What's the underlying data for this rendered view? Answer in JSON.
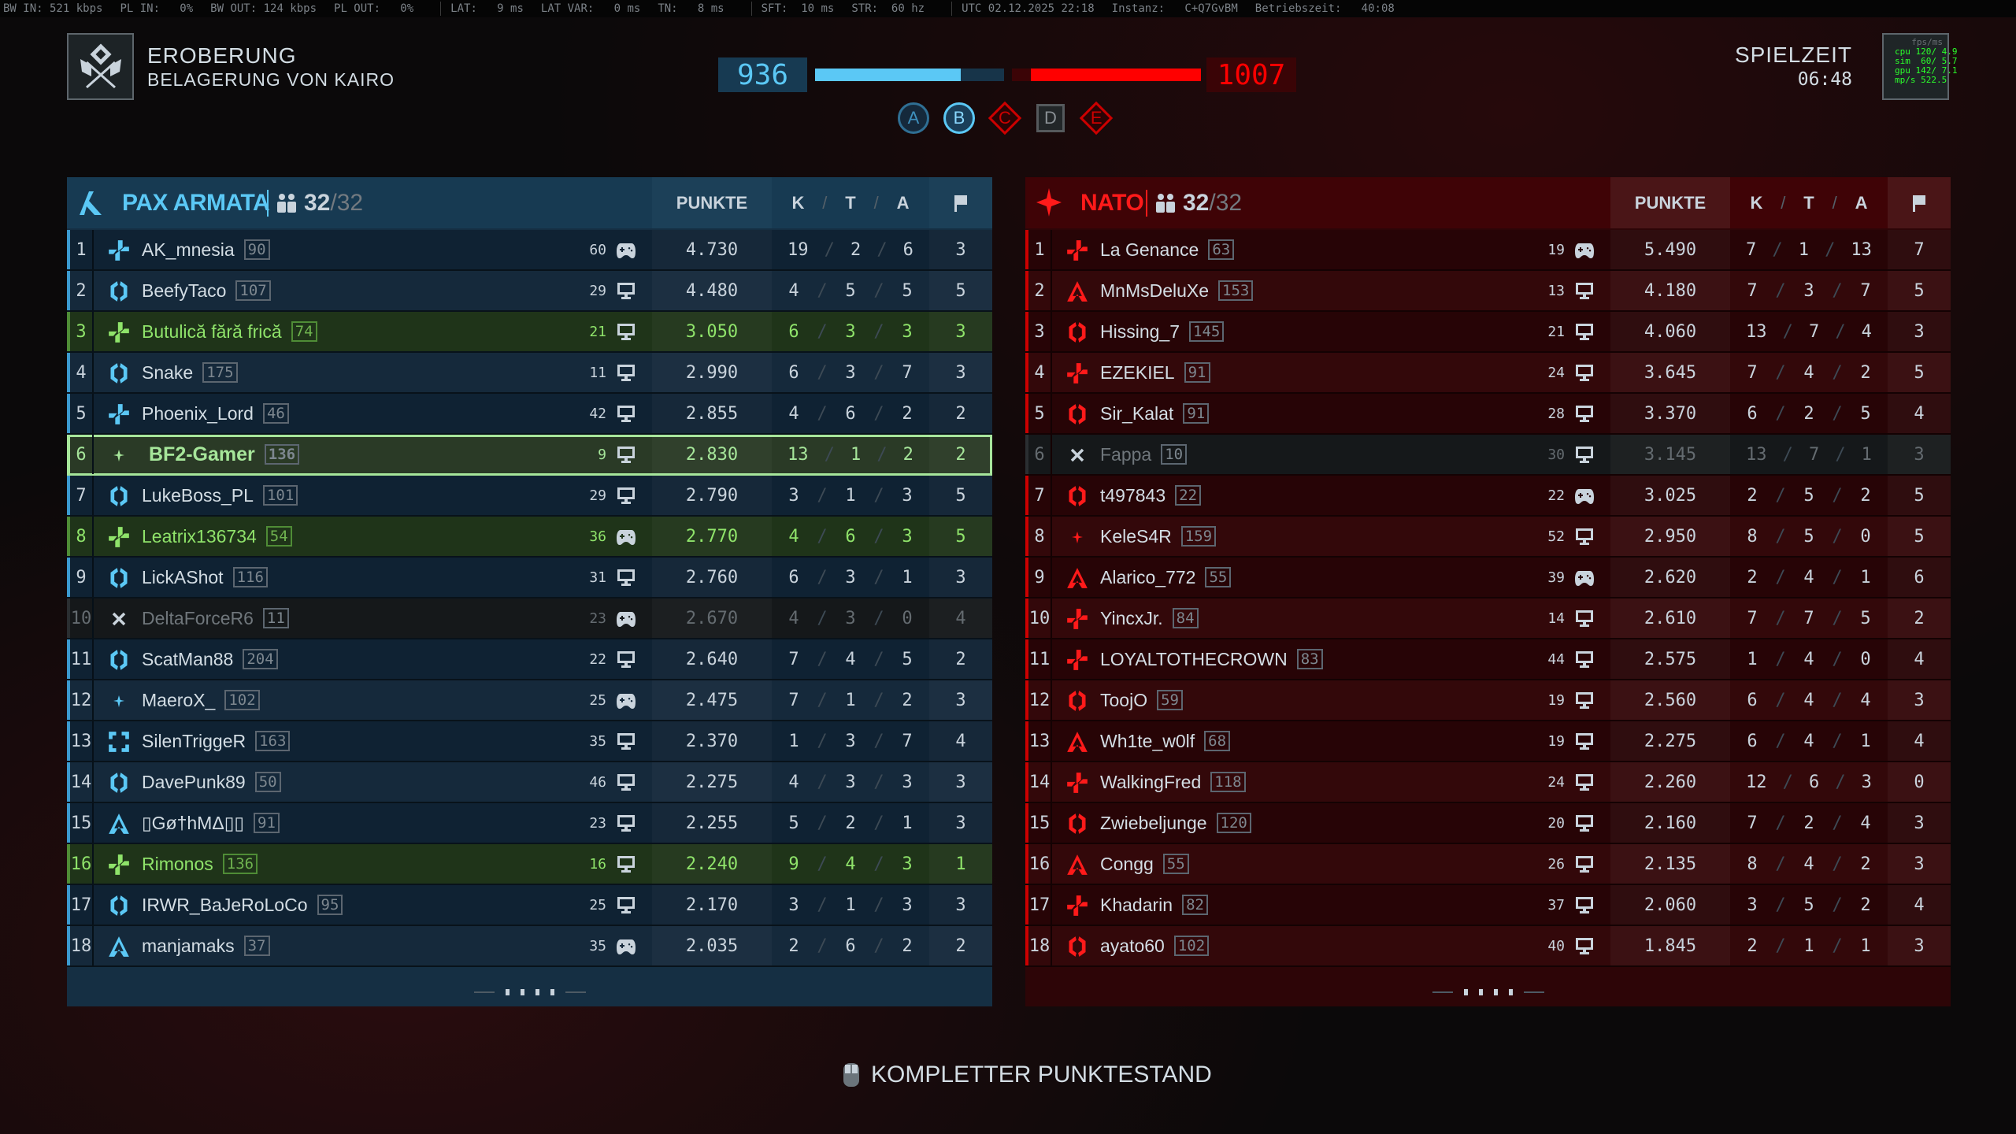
{
  "status_bar": {
    "segments": [
      [
        "BW IN: 521 kbps",
        "PL IN:   0%",
        "BW OUT: 124 kbps",
        "PL OUT:   0%"
      ],
      [
        "LAT:   9 ms",
        "LAT VAR:   0 ms",
        "TN:   8 ms"
      ],
      [
        "SFT:  10 ms",
        "STR:  60 hz"
      ],
      [
        "UTC 02.12.2025 22:18",
        "Instanz:   C+Q7GvBM",
        "Betriebszeit:   40:08"
      ]
    ]
  },
  "mode": {
    "title": "EROBERUNG",
    "map": "BELAGERUNG VON KAIRO",
    "icon": "conquest-emblem-icon"
  },
  "scoreboard": {
    "blue_score": "936",
    "red_score": "1007",
    "blue_bar_fraction": 0.77,
    "red_bar_fraction": 0.9,
    "flags": [
      {
        "label": "A",
        "owner": "blue",
        "shape": "circle",
        "active": false
      },
      {
        "label": "B",
        "owner": "blue",
        "shape": "circle",
        "active": true
      },
      {
        "label": "C",
        "owner": "red",
        "shape": "diamond",
        "active": false
      },
      {
        "label": "D",
        "owner": "neutral",
        "shape": "square",
        "active": false
      },
      {
        "label": "E",
        "owner": "red",
        "shape": "diamond",
        "active": false
      }
    ]
  },
  "clock": {
    "label": "SPIELZEIT",
    "value": "06:48"
  },
  "perf": {
    "header": "fps/ms",
    "lines": [
      "cpu 120/ 4.9",
      "sim  60/ 5.7",
      "gpu 142/ 7.1",
      "mp/s 522.5"
    ]
  },
  "colors": {
    "blue": "#5bc8f5",
    "red": "#ff1a1a",
    "squad_green": "#8fe36a",
    "self_green": "#a6e69a"
  },
  "columns": {
    "score": "PUNKTE",
    "k": "K",
    "t": "T",
    "a": "A",
    "flags_icon": "flag-icon"
  },
  "teams": [
    {
      "name": "PAX ARMATA",
      "count": "32",
      "max": "/32",
      "side": "left",
      "players": [
        {
          "rank": "1",
          "cls": "assault",
          "name": "AK_mnesia",
          "level": "90",
          "ping": "60",
          "device": "gamepad",
          "score": "4.730",
          "k": "19",
          "t": "2",
          "a": "6",
          "flags": "3",
          "state": ""
        },
        {
          "rank": "2",
          "cls": "support",
          "name": "BeefyTaco",
          "level": "107",
          "ping": "29",
          "device": "pc",
          "score": "4.480",
          "k": "4",
          "t": "5",
          "a": "5",
          "flags": "5",
          "state": ""
        },
        {
          "rank": "3",
          "cls": "assault",
          "name": "Butulică fără frică",
          "level": "74",
          "ping": "21",
          "device": "pc",
          "score": "3.050",
          "k": "6",
          "t": "3",
          "a": "3",
          "flags": "3",
          "state": "squad"
        },
        {
          "rank": "4",
          "cls": "support",
          "name": "Snake",
          "level": "175",
          "ping": "11",
          "device": "pc",
          "score": "2.990",
          "k": "6",
          "t": "3",
          "a": "7",
          "flags": "3",
          "state": ""
        },
        {
          "rank": "5",
          "cls": "assault",
          "name": "Phoenix_Lord",
          "level": "46",
          "ping": "42",
          "device": "pc",
          "score": "2.855",
          "k": "4",
          "t": "6",
          "a": "2",
          "flags": "2",
          "state": ""
        },
        {
          "rank": "6",
          "cls": "pulse",
          "name": "BF2-Gamer",
          "level": "136",
          "ping": "9",
          "device": "pc",
          "score": "2.830",
          "k": "13",
          "t": "1",
          "a": "2",
          "flags": "2",
          "state": "self"
        },
        {
          "rank": "7",
          "cls": "support",
          "name": "LukeBoss_PL",
          "level": "101",
          "ping": "29",
          "device": "pc",
          "score": "2.790",
          "k": "3",
          "t": "1",
          "a": "3",
          "flags": "5",
          "state": ""
        },
        {
          "rank": "8",
          "cls": "assault",
          "name": "Leatrix136734",
          "level": "54",
          "ping": "36",
          "device": "gamepad",
          "score": "2.770",
          "k": "4",
          "t": "6",
          "a": "3",
          "flags": "5",
          "state": "squad"
        },
        {
          "rank": "9",
          "cls": "support",
          "name": "LickAShot",
          "level": "116",
          "ping": "31",
          "device": "pc",
          "score": "2.760",
          "k": "6",
          "t": "3",
          "a": "1",
          "flags": "3",
          "state": ""
        },
        {
          "rank": "10",
          "cls": "dead",
          "name": "DeltaForceR6",
          "level": "11",
          "ping": "23",
          "device": "gamepad",
          "score": "2.670",
          "k": "4",
          "t": "3",
          "a": "0",
          "flags": "4",
          "state": "dead"
        },
        {
          "rank": "11",
          "cls": "support",
          "name": "ScatMan88",
          "level": "204",
          "ping": "22",
          "device": "pc",
          "score": "2.640",
          "k": "7",
          "t": "4",
          "a": "5",
          "flags": "2",
          "state": ""
        },
        {
          "rank": "12",
          "cls": "pulse",
          "name": "MaeroX_",
          "level": "102",
          "ping": "25",
          "device": "gamepad",
          "score": "2.475",
          "k": "7",
          "t": "1",
          "a": "2",
          "flags": "3",
          "state": ""
        },
        {
          "rank": "13",
          "cls": "engineer",
          "name": "SilenTriggeR",
          "level": "163",
          "ping": "35",
          "device": "pc",
          "score": "2.370",
          "k": "1",
          "t": "3",
          "a": "7",
          "flags": "4",
          "state": ""
        },
        {
          "rank": "14",
          "cls": "support",
          "name": "DavePunk89",
          "level": "50",
          "ping": "46",
          "device": "pc",
          "score": "2.275",
          "k": "4",
          "t": "3",
          "a": "3",
          "flags": "3",
          "state": ""
        },
        {
          "rank": "15",
          "cls": "recon",
          "name": "▯Gø†hMΔ▯▯",
          "level": "91",
          "ping": "23",
          "device": "pc",
          "score": "2.255",
          "k": "5",
          "t": "2",
          "a": "1",
          "flags": "3",
          "state": ""
        },
        {
          "rank": "16",
          "cls": "assault",
          "name": "Rimonos",
          "level": "136",
          "ping": "16",
          "device": "pc",
          "score": "2.240",
          "k": "9",
          "t": "4",
          "a": "3",
          "flags": "1",
          "state": "squad"
        },
        {
          "rank": "17",
          "cls": "support",
          "name": "IRWR_BaJeRoLoCo",
          "level": "95",
          "ping": "25",
          "device": "pc",
          "score": "2.170",
          "k": "3",
          "t": "1",
          "a": "3",
          "flags": "3",
          "state": ""
        },
        {
          "rank": "18",
          "cls": "recon",
          "name": "manjamaks",
          "level": "37",
          "ping": "35",
          "device": "gamepad",
          "score": "2.035",
          "k": "2",
          "t": "6",
          "a": "2",
          "flags": "2",
          "state": ""
        }
      ]
    },
    {
      "name": "NATO",
      "count": "32",
      "max": "/32",
      "side": "right",
      "players": [
        {
          "rank": "1",
          "cls": "assault",
          "name": "La Genance",
          "level": "63",
          "ping": "19",
          "device": "gamepad",
          "score": "5.490",
          "k": "7",
          "t": "1",
          "a": "13",
          "flags": "7",
          "state": ""
        },
        {
          "rank": "2",
          "cls": "recon",
          "name": "MnMsDeluXe",
          "level": "153",
          "ping": "13",
          "device": "pc",
          "score": "4.180",
          "k": "7",
          "t": "3",
          "a": "7",
          "flags": "5",
          "state": ""
        },
        {
          "rank": "3",
          "cls": "support",
          "name": "Hissing_7",
          "level": "145",
          "ping": "21",
          "device": "pc",
          "score": "4.060",
          "k": "13",
          "t": "7",
          "a": "4",
          "flags": "3",
          "state": ""
        },
        {
          "rank": "4",
          "cls": "assault",
          "name": "EZEKIEL",
          "level": "91",
          "ping": "24",
          "device": "pc",
          "score": "3.645",
          "k": "7",
          "t": "4",
          "a": "2",
          "flags": "5",
          "state": ""
        },
        {
          "rank": "5",
          "cls": "support",
          "name": "Sir_Kalat",
          "level": "91",
          "ping": "28",
          "device": "pc",
          "score": "3.370",
          "k": "6",
          "t": "2",
          "a": "5",
          "flags": "4",
          "state": ""
        },
        {
          "rank": "6",
          "cls": "dead",
          "name": "Fappa",
          "level": "10",
          "ping": "30",
          "device": "pc",
          "score": "3.145",
          "k": "13",
          "t": "7",
          "a": "1",
          "flags": "3",
          "state": "dead"
        },
        {
          "rank": "7",
          "cls": "support",
          "name": "t497843",
          "level": "22",
          "ping": "22",
          "device": "gamepad",
          "score": "3.025",
          "k": "2",
          "t": "5",
          "a": "2",
          "flags": "5",
          "state": ""
        },
        {
          "rank": "8",
          "cls": "pulse",
          "name": "KeleS4R",
          "level": "159",
          "ping": "52",
          "device": "pc",
          "score": "2.950",
          "k": "8",
          "t": "5",
          "a": "0",
          "flags": "5",
          "state": ""
        },
        {
          "rank": "9",
          "cls": "recon",
          "name": "Alarico_772",
          "level": "55",
          "ping": "39",
          "device": "gamepad",
          "score": "2.620",
          "k": "2",
          "t": "4",
          "a": "1",
          "flags": "6",
          "state": ""
        },
        {
          "rank": "10",
          "cls": "assault",
          "name": "YincxJr.",
          "level": "84",
          "ping": "14",
          "device": "pc",
          "score": "2.610",
          "k": "7",
          "t": "7",
          "a": "5",
          "flags": "2",
          "state": ""
        },
        {
          "rank": "11",
          "cls": "assault",
          "name": "LOYALTOTHECROWN",
          "level": "83",
          "ping": "44",
          "device": "pc",
          "score": "2.575",
          "k": "1",
          "t": "4",
          "a": "0",
          "flags": "4",
          "state": ""
        },
        {
          "rank": "12",
          "cls": "support",
          "name": "ToojO",
          "level": "59",
          "ping": "19",
          "device": "pc",
          "score": "2.560",
          "k": "6",
          "t": "4",
          "a": "4",
          "flags": "3",
          "state": ""
        },
        {
          "rank": "13",
          "cls": "recon",
          "name": "Wh1te_w0lf",
          "level": "68",
          "ping": "19",
          "device": "pc",
          "score": "2.275",
          "k": "6",
          "t": "4",
          "a": "1",
          "flags": "4",
          "state": ""
        },
        {
          "rank": "14",
          "cls": "assault",
          "name": "WalkingFred",
          "level": "118",
          "ping": "24",
          "device": "pc",
          "score": "2.260",
          "k": "12",
          "t": "6",
          "a": "3",
          "flags": "0",
          "state": ""
        },
        {
          "rank": "15",
          "cls": "support",
          "name": "Zwiebeljunge",
          "level": "120",
          "ping": "20",
          "device": "pc",
          "score": "2.160",
          "k": "7",
          "t": "2",
          "a": "4",
          "flags": "3",
          "state": ""
        },
        {
          "rank": "16",
          "cls": "recon",
          "name": "Congg",
          "level": "55",
          "ping": "26",
          "device": "pc",
          "score": "2.135",
          "k": "8",
          "t": "4",
          "a": "2",
          "flags": "3",
          "state": ""
        },
        {
          "rank": "17",
          "cls": "assault",
          "name": "Khadarin",
          "level": "82",
          "ping": "37",
          "device": "pc",
          "score": "2.060",
          "k": "3",
          "t": "5",
          "a": "2",
          "flags": "4",
          "state": ""
        },
        {
          "rank": "18",
          "cls": "support",
          "name": "ayato60",
          "level": "102",
          "ping": "40",
          "device": "pc",
          "score": "1.845",
          "k": "2",
          "t": "1",
          "a": "1",
          "flags": "3",
          "state": ""
        }
      ]
    }
  ],
  "footer": {
    "label": "KOMPLETTER PUNKTESTAND",
    "icon": "mouse-icon"
  }
}
